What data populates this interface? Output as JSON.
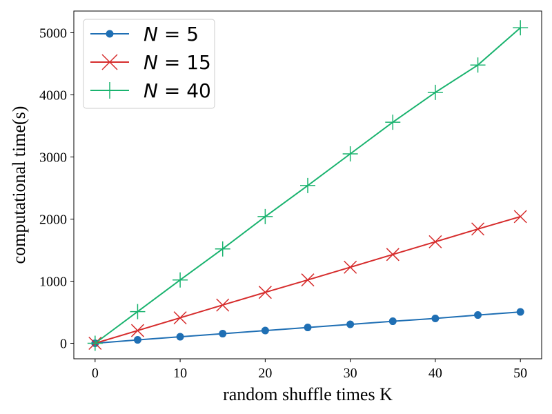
{
  "chart_data": {
    "type": "line",
    "title": "",
    "xlabel": "random shuffle times K",
    "ylabel": "computational time(s)",
    "xlim": [
      -2.5,
      52.5
    ],
    "ylim": [
      -250,
      5350
    ],
    "xticks": [
      0,
      10,
      20,
      30,
      40,
      50
    ],
    "yticks": [
      0,
      1000,
      2000,
      3000,
      4000,
      5000
    ],
    "grid": false,
    "legend_position": "top-left",
    "x": [
      0,
      5,
      10,
      15,
      20,
      25,
      30,
      35,
      40,
      45,
      50
    ],
    "series": [
      {
        "name": "N = 5",
        "legend_var": "N",
        "legend_op": "=",
        "legend_val": "5",
        "color": "#1f6fb4",
        "marker": "circle",
        "values": [
          0,
          55,
          105,
          155,
          205,
          255,
          305,
          355,
          400,
          455,
          505
        ]
      },
      {
        "name": "N = 15",
        "legend_var": "N",
        "legend_op": "=",
        "legend_val": "15",
        "color": "#d62c2c",
        "marker": "x",
        "values": [
          0,
          205,
          410,
          615,
          820,
          1020,
          1225,
          1430,
          1635,
          1840,
          2040
        ]
      },
      {
        "name": "N = 40",
        "legend_var": "N",
        "legend_op": "=",
        "legend_val": "40",
        "color": "#1ab36f",
        "marker": "plus",
        "values": [
          0,
          510,
          1020,
          1520,
          2040,
          2540,
          3050,
          3560,
          4040,
          4480,
          5080
        ]
      }
    ]
  }
}
